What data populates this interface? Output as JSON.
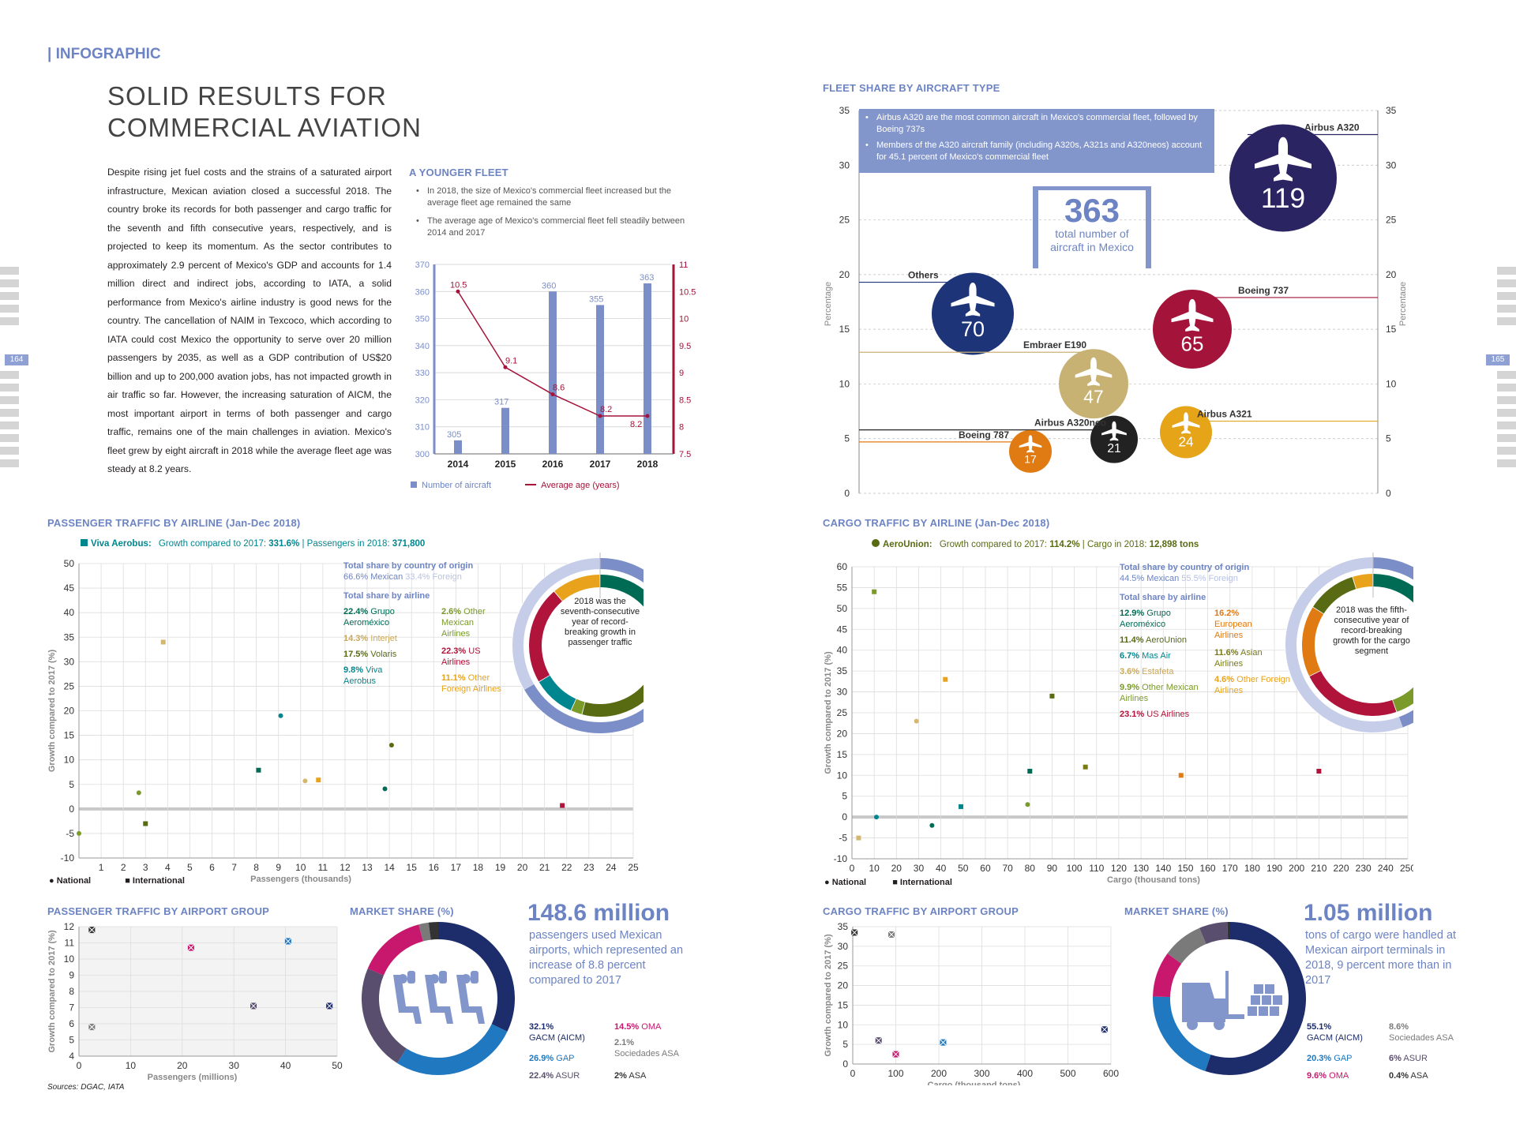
{
  "header": {
    "tag": "| INFOGRAPHIC",
    "title_line1": "SOLID RESULTS FOR",
    "title_line2": "COMMERCIAL AVIATION"
  },
  "page_numbers": {
    "left": "164",
    "right": "165"
  },
  "intro_text": "Despite rising jet fuel costs and the strains of a saturated airport infrastructure, Mexican aviation closed a successful 2018. The country broke its records for both passenger and cargo traffic for the seventh and fifth consecutive years, respectively, and is projected to keep its momentum. As the sector contributes to approximately 2.9 percent of Mexico's GDP and accounts for 1.4 million direct and indirect jobs, according to IATA, a solid performance from Mexico's airline industry is good news for the country. The cancellation of NAIM in Texcoco, which according to IATA could cost Mexico the opportunity to serve over 20 million passengers by 2035, as well as a GDP contribution of US$20 billion and up to 200,000 avation jobs, has not impacted growth in air traffic so far. However, the increasing saturation of AICM, the most important airport in terms of both passenger and cargo traffic, remains one of the main challenges in aviation. Mexico's fleet grew by eight aircraft in 2018 while the average fleet age was steady at 8.2 years.",
  "younger_fleet": {
    "title": "A YOUNGER FLEET",
    "bullets": [
      "In 2018, the size of Mexico's commercial fleet increased but the average fleet age remained the same",
      "The average age of Mexico's commercial fleet fell steadily between 2014 and 2017"
    ],
    "legend_bar": "Number of aircraft",
    "legend_line": "Average age (years)"
  },
  "fleet_share": {
    "title": "FLEET SHARE BY AIRCRAFT TYPE",
    "bullets": [
      "Airbus A320 are the most common aircraft in Mexico's commercial fleet, followed by Boeing 737s",
      "Members of the A320 aircraft family (including A320s, A321s and A320neos) account for 45.1 percent of Mexico's commercial fleet"
    ],
    "total_number": "363",
    "total_label": "total number of aircraft in Mexico",
    "ylabel": "Percentage"
  },
  "passenger_airline": {
    "title": "PASSENGER TRAFFIC BY AIRLINE (Jan-Dec 2018)",
    "highlight_airline": "Viva Aerobus:",
    "highlight_growth_label": "Growth compared to 2017:",
    "highlight_growth": "331.6%",
    "highlight_pax_label": "| Passengers in 2018:",
    "highlight_pax": "371,800",
    "share_country_title": "Total share by country of origin",
    "share_country_mex": "66.6% Mexican",
    "share_country_for": "33.4% Foreign",
    "share_airline_title": "Total share by airline",
    "shares": [
      {
        "pct": "22.4%",
        "name": "Grupo Aeroméxico",
        "color": "#006b54"
      },
      {
        "pct": "14.3%",
        "name": "Interjet",
        "color": "#d4b872"
      },
      {
        "pct": "17.5%",
        "name": "Volaris",
        "color": "#586b12"
      },
      {
        "pct": "9.8%",
        "name": "Viva Aerobus",
        "color": "#00868f"
      },
      {
        "pct": "2.6%",
        "name": "Other Mexican Airlines",
        "color": "#7a9a2a"
      },
      {
        "pct": "22.3%",
        "name": "US Airlines",
        "color": "#b0143a"
      },
      {
        "pct": "11.1%",
        "name": "Other Foreign Airlines",
        "color": "#e8a21b"
      }
    ],
    "donut_text": "2018 was the seventh-consecutive year of record-breaking growth in passenger traffic",
    "xlabel": "Passengers (thousands)",
    "ylabel": "Growth compared to 2017 (%)",
    "legend_national": "National",
    "legend_international": "International"
  },
  "cargo_airline": {
    "title": "CARGO TRAFFIC BY AIRLINE (Jan-Dec 2018)",
    "highlight_airline": "AeroUnion:",
    "highlight_growth_label": "Growth compared to 2017:",
    "highlight_growth": "114.2%",
    "highlight_cargo_label": "| Cargo in 2018:",
    "highlight_cargo": "12,898 tons",
    "share_country_title": "Total share by country of origin",
    "share_country_mex": "44.5% Mexican",
    "share_country_for": "55.5% Foreign",
    "share_airline_title": "Total share by airline",
    "shares": [
      {
        "pct": "12.9%",
        "name": "Grupo Aeroméxico",
        "color": "#006b54"
      },
      {
        "pct": "11.4%",
        "name": "AeroUnion",
        "color": "#586b12"
      },
      {
        "pct": "6.7%",
        "name": "Mas Air",
        "color": "#00868f"
      },
      {
        "pct": "3.6%",
        "name": "Estafeta",
        "color": "#d4b872"
      },
      {
        "pct": "9.9%",
        "name": "Other Mexican Airlines",
        "color": "#7a9a2a"
      },
      {
        "pct": "23.1%",
        "name": "US Airlines",
        "color": "#b0143a"
      },
      {
        "pct": "16.2%",
        "name": "European Airlines",
        "color": "#e07a12"
      },
      {
        "pct": "11.6%",
        "name": "Asian Airlines",
        "color": "#7a7a14"
      },
      {
        "pct": "4.6%",
        "name": "Other Foreign Airlines",
        "color": "#e8a21b"
      }
    ],
    "donut_text": "2018 was the fifth-consecutive year of record-breaking growth for the cargo segment",
    "xlabel": "Cargo (thousand tons)",
    "ylabel": "Growth compared to 2017 (%)",
    "legend_national": "National",
    "legend_international": "International"
  },
  "pax_airport": {
    "title": "PASSENGER TRAFFIC BY AIRPORT GROUP",
    "xlabel": "Passengers (millions)",
    "ylabel": "Growth compared to 2017 (%)",
    "market_title": "MARKET SHARE (%)",
    "big_number": "148.6 million",
    "big_text": "passengers used Mexican airports, which represented an increase of 8.8 percent compared to 2017",
    "shares": [
      {
        "pct": "32.1%",
        "name": "GACM (AICM)",
        "color": "#1d2c6b"
      },
      {
        "pct": "26.9%",
        "name": "GAP",
        "color": "#1f78c0"
      },
      {
        "pct": "22.4%",
        "name": "ASUR",
        "color": "#5a4e6e"
      },
      {
        "pct": "14.5%",
        "name": "OMA",
        "color": "#c8186e"
      },
      {
        "pct": "2.1%",
        "name": "Sociedades ASA",
        "color": "#7a7a7a"
      },
      {
        "pct": "2%",
        "name": "ASA",
        "color": "#333333"
      }
    ],
    "sources": "Sources: DGAC, IATA"
  },
  "cargo_airport": {
    "title": "CARGO TRAFFIC BY AIRPORT GROUP",
    "xlabel": "Cargo (thousand tons)",
    "ylabel": "Growth compared to 2017 (%)",
    "market_title": "MARKET SHARE (%)",
    "big_number": "1.05 million",
    "big_text": "tons of cargo were handled at Mexican airport terminals in 2018, 9 percent more than in 2017",
    "shares": [
      {
        "pct": "55.1%",
        "name": "GACM (AICM)",
        "color": "#1d2c6b"
      },
      {
        "pct": "20.3%",
        "name": "GAP",
        "color": "#1f78c0"
      },
      {
        "pct": "9.6%",
        "name": "OMA",
        "color": "#c8186e"
      },
      {
        "pct": "8.6%",
        "name": "Sociedades ASA",
        "color": "#7a7a7a"
      },
      {
        "pct": "6%",
        "name": "ASUR",
        "color": "#5a4e6e"
      },
      {
        "pct": "0.4%",
        "name": "ASA",
        "color": "#333333"
      }
    ]
  },
  "chart_data": [
    {
      "type": "bar",
      "categories": [
        "2014",
        "2015",
        "2016",
        "2017",
        "2018"
      ],
      "series": [
        {
          "name": "Number of aircraft",
          "values": [
            305,
            317,
            360,
            355,
            363
          ]
        },
        {
          "name": "Average age (years)",
          "values": [
            10.5,
            9.1,
            8.6,
            8.2,
            8.2
          ]
        }
      ],
      "ylim": [
        300,
        370
      ],
      "y2lim": [
        7.5,
        11
      ],
      "yticks": [
        300,
        310,
        320,
        330,
        340,
        350,
        360,
        370
      ],
      "y2ticks": [
        7.5,
        8,
        8.5,
        9,
        9.5,
        10,
        10.5,
        11
      ]
    },
    {
      "type": "scatter",
      "ylabel": "Percentage",
      "ylim": [
        0,
        35
      ],
      "yticks": [
        0,
        5,
        10,
        15,
        20,
        25,
        30,
        35
      ],
      "points": [
        {
          "name": "Airbus A320",
          "y": 32.8,
          "value": "119",
          "color": "#2b2463"
        },
        {
          "name": "Others",
          "y": 19.3,
          "value": "70",
          "color": "#1d3478"
        },
        {
          "name": "Boeing 737",
          "y": 17.9,
          "value": "65",
          "color": "#a3133a"
        },
        {
          "name": "Embraer E190",
          "y": 12.9,
          "value": "47",
          "color": "#c8b273"
        },
        {
          "name": "Airbus A320neo",
          "y": 5.8,
          "value": "21",
          "color": "#222222"
        },
        {
          "name": "Airbus A321",
          "y": 6.6,
          "value": "24",
          "color": "#e6a418"
        },
        {
          "name": "Boeing 787",
          "y": 4.7,
          "value": "17",
          "color": "#e07a12"
        }
      ]
    },
    {
      "type": "scatter",
      "xlim": [
        0,
        25
      ],
      "ylim": [
        -10,
        50
      ],
      "xticks": [
        1,
        2,
        3,
        4,
        5,
        6,
        7,
        8,
        9,
        10,
        11,
        12,
        13,
        14,
        15,
        16,
        17,
        18,
        19,
        20,
        21,
        22,
        23,
        24,
        25
      ],
      "yticks": [
        -10,
        -5,
        0,
        5,
        10,
        15,
        20,
        25,
        30,
        35,
        40,
        45,
        50
      ],
      "points": [
        {
          "x": 0,
          "y": -5,
          "color": "#7a9a2a",
          "shape": "circle"
        },
        {
          "x": 2.7,
          "y": 3.3,
          "color": "#7a9a2a",
          "shape": "circle"
        },
        {
          "x": 3,
          "y": -3,
          "color": "#586b12",
          "shape": "square"
        },
        {
          "x": 3.8,
          "y": 34,
          "color": "#d4b872",
          "shape": "square"
        },
        {
          "x": 8.1,
          "y": 7.9,
          "color": "#006b54",
          "shape": "square"
        },
        {
          "x": 9.1,
          "y": 19,
          "color": "#00868f",
          "shape": "circle"
        },
        {
          "x": 10.2,
          "y": 5.7,
          "color": "#d4b872",
          "shape": "circle"
        },
        {
          "x": 10.8,
          "y": 5.9,
          "color": "#e8a21b",
          "shape": "square"
        },
        {
          "x": 13.8,
          "y": 4.1,
          "color": "#006b54",
          "shape": "circle"
        },
        {
          "x": 14.1,
          "y": 13,
          "color": "#586b12",
          "shape": "circle"
        },
        {
          "x": 21.8,
          "y": 0.7,
          "color": "#b0143a",
          "shape": "square"
        }
      ]
    },
    {
      "type": "scatter",
      "xlim": [
        0,
        250
      ],
      "ylim": [
        -10,
        60
      ],
      "xticks": [
        0,
        10,
        20,
        30,
        40,
        50,
        60,
        70,
        80,
        90,
        100,
        110,
        120,
        130,
        140,
        150,
        160,
        170,
        180,
        190,
        200,
        210,
        220,
        230,
        240,
        250
      ],
      "yticks": [
        -10,
        -5,
        0,
        5,
        10,
        15,
        20,
        25,
        30,
        35,
        40,
        45,
        50,
        55,
        60
      ],
      "points": [
        {
          "x": 3,
          "y": -5,
          "color": "#d4b872",
          "shape": "square"
        },
        {
          "x": 10,
          "y": 54,
          "color": "#7a9a2a",
          "shape": "square"
        },
        {
          "x": 11,
          "y": 0,
          "color": "#00868f",
          "shape": "circle"
        },
        {
          "x": 29,
          "y": 23,
          "color": "#d4b872",
          "shape": "circle"
        },
        {
          "x": 36,
          "y": -2,
          "color": "#006b54",
          "shape": "circle"
        },
        {
          "x": 42,
          "y": 33,
          "color": "#e8a21b",
          "shape": "square"
        },
        {
          "x": 49,
          "y": 2.5,
          "color": "#00868f",
          "shape": "square"
        },
        {
          "x": 79,
          "y": 3,
          "color": "#7a9a2a",
          "shape": "circle"
        },
        {
          "x": 80,
          "y": 11,
          "color": "#006b54",
          "shape": "square"
        },
        {
          "x": 90,
          "y": 29,
          "color": "#586b12",
          "shape": "square"
        },
        {
          "x": 105,
          "y": 12,
          "color": "#7a7a14",
          "shape": "square"
        },
        {
          "x": 148,
          "y": 10,
          "color": "#e07a12",
          "shape": "square"
        },
        {
          "x": 210,
          "y": 11,
          "color": "#b0143a",
          "shape": "square"
        }
      ]
    },
    {
      "type": "scatter",
      "xlim": [
        0,
        50
      ],
      "ylim": [
        4,
        12
      ],
      "xticks": [
        0,
        10,
        20,
        30,
        40,
        50
      ],
      "yticks": [
        4,
        5,
        6,
        7,
        8,
        9,
        10,
        11,
        12
      ],
      "points": [
        {
          "x": 2.5,
          "y": 11.8,
          "color": "#333333"
        },
        {
          "x": 2.5,
          "y": 5.8,
          "color": "#7a7a7a"
        },
        {
          "x": 21.7,
          "y": 10.7,
          "color": "#c8186e"
        },
        {
          "x": 33.8,
          "y": 7.1,
          "color": "#5a4e6e"
        },
        {
          "x": 40.5,
          "y": 11.1,
          "color": "#1f78c0"
        },
        {
          "x": 48.5,
          "y": 7.1,
          "color": "#1d2c6b"
        }
      ]
    },
    {
      "type": "scatter",
      "xlim": [
        0,
        600
      ],
      "ylim": [
        0,
        35
      ],
      "xticks": [
        0,
        100,
        200,
        300,
        400,
        500,
        600
      ],
      "yticks": [
        0,
        5,
        10,
        15,
        20,
        25,
        30,
        35
      ],
      "points": [
        {
          "x": 4,
          "y": 33.5,
          "color": "#333333"
        },
        {
          "x": 90,
          "y": 33,
          "color": "#7a7a7a"
        },
        {
          "x": 60,
          "y": 6,
          "color": "#5a4e6e"
        },
        {
          "x": 100,
          "y": 2.5,
          "color": "#c8186e"
        },
        {
          "x": 210,
          "y": 5.5,
          "color": "#1f78c0"
        },
        {
          "x": 585,
          "y": 8.8,
          "color": "#1d2c6b"
        }
      ]
    }
  ]
}
